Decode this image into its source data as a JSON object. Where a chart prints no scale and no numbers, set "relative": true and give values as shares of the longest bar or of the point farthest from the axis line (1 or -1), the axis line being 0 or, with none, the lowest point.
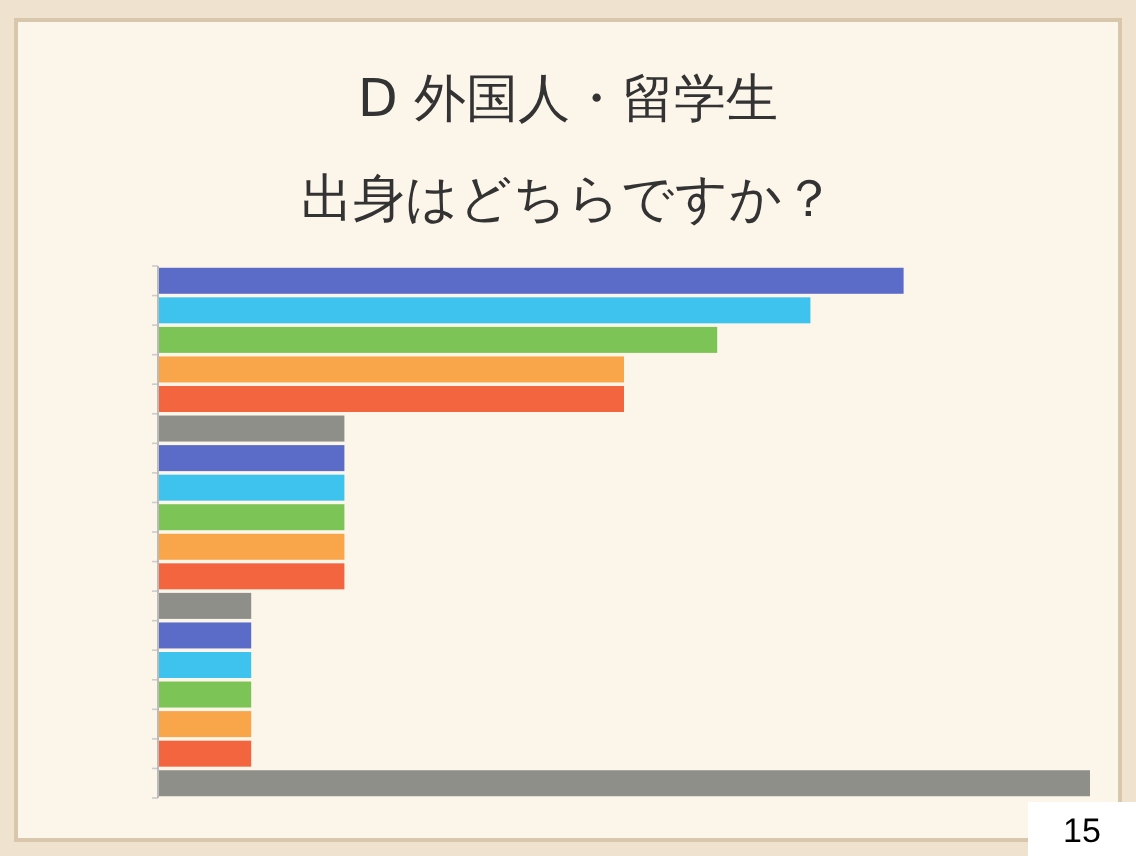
{
  "chart_data": {
    "type": "bar",
    "orientation": "horizontal",
    "relative": true,
    "title": "D 外国人・留学生",
    "subtitle": "出身はどちらですか？",
    "categories": [
      null,
      null,
      null,
      null,
      null,
      null,
      null,
      null,
      null,
      null,
      null,
      null,
      null,
      null,
      null,
      null,
      null,
      null
    ],
    "values": [
      0.8,
      0.7,
      0.6,
      0.5,
      0.5,
      0.2,
      0.2,
      0.2,
      0.2,
      0.2,
      0.2,
      0.1,
      0.1,
      0.1,
      0.1,
      0.1,
      0.1,
      1
    ],
    "colors": [
      "#5b6bc8",
      "#3ec3ee",
      "#7dc457",
      "#f9a54a",
      "#f2653e",
      "#8f8f8a",
      "#5b6bc8",
      "#3ec3ee",
      "#7dc457",
      "#f9a54a",
      "#f2653e",
      "#8f8f8a",
      "#5b6bc8",
      "#3ec3ee",
      "#7dc457",
      "#f9a54a",
      "#f2653e",
      "#8f8f8a"
    ],
    "annotations": [
      "15"
    ]
  }
}
